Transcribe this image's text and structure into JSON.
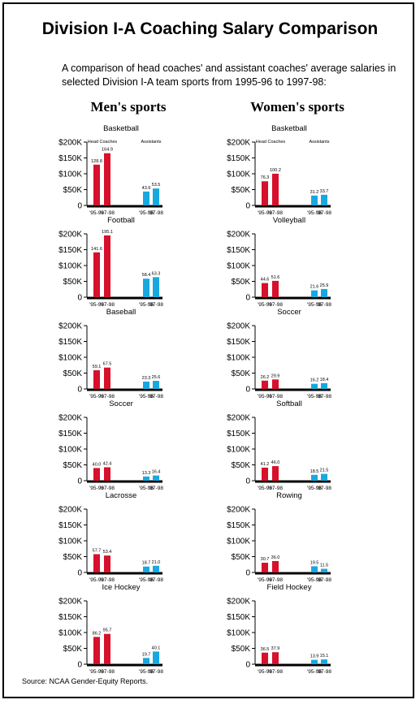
{
  "title": "Division I-A Coaching Salary Comparison",
  "subtitle": "A comparison of head coaches' and assistant coaches' average salaries in selected Division I-A team sports from 1995-96 to 1997-98:",
  "columns": {
    "men": "Men's sports",
    "women": "Women's sports"
  },
  "source": "Source: NCAA Gender-Equity Reports.",
  "colors": {
    "head": "#d7102c",
    "assistant": "#18a8e0",
    "axis": "#000000"
  },
  "chart_data": [
    {
      "type": "bar",
      "group": "Men's sports",
      "title": "Basketball",
      "ylim": [
        0,
        200
      ],
      "yticks": [
        "0",
        "$50K",
        "$100K",
        "$150K",
        "$200K"
      ],
      "series_labels": [
        "Head Coaches",
        "Assistants"
      ],
      "categories": [
        "'95-96",
        "'97-98"
      ],
      "series": [
        {
          "values": [
            128.8,
            164.9
          ],
          "labels": [
            "128.8",
            "164.9"
          ]
        },
        {
          "values": [
            43.9,
            53.5
          ],
          "labels": [
            "43.9",
            "53.5"
          ]
        }
      ]
    },
    {
      "type": "bar",
      "group": "Women's sports",
      "title": "Basketball",
      "ylim": [
        0,
        200
      ],
      "yticks": [
        "0",
        "$50K",
        "$100K",
        "$150K",
        "$200K"
      ],
      "series_labels": [
        "Head Coaches",
        "Assistants"
      ],
      "categories": [
        "'95-96",
        "'97-98"
      ],
      "series": [
        {
          "values": [
            76.3,
            100.2
          ],
          "labels": [
            "76.3",
            "100.2"
          ]
        },
        {
          "values": [
            31.2,
            33.7
          ],
          "labels": [
            "31.2",
            "33.7"
          ]
        }
      ]
    },
    {
      "type": "bar",
      "group": "Men's sports",
      "title": "Football",
      "ylim": [
        0,
        200
      ],
      "yticks": [
        "0",
        "$50K",
        "$100K",
        "$150K",
        "$200K"
      ],
      "categories": [
        "'95-96",
        "'97-98"
      ],
      "series": [
        {
          "values": [
            141.6,
            195.1
          ],
          "labels": [
            "141.6",
            "195.1"
          ]
        },
        {
          "values": [
            58.4,
            63.3
          ],
          "labels": [
            "58.4",
            "63.3"
          ]
        }
      ]
    },
    {
      "type": "bar",
      "group": "Women's sports",
      "title": "Volleyball",
      "ylim": [
        0,
        200
      ],
      "yticks": [
        "0",
        "$50K",
        "$100K",
        "$150K",
        "$200K"
      ],
      "categories": [
        "'95-96",
        "'97-98"
      ],
      "series": [
        {
          "values": [
            44.6,
            51.6
          ],
          "labels": [
            "44.6",
            "51.6"
          ]
        },
        {
          "values": [
            21.6,
            25.9
          ],
          "labels": [
            "21.6",
            "25.9"
          ]
        }
      ]
    },
    {
      "type": "bar",
      "group": "Men's sports",
      "title": "Baseball",
      "ylim": [
        0,
        200
      ],
      "yticks": [
        "0",
        "$50K",
        "$100K",
        "$150K",
        "$200K"
      ],
      "categories": [
        "'95-96",
        "'97-98"
      ],
      "series": [
        {
          "values": [
            59.1,
            67.5
          ],
          "labels": [
            "59.1",
            "67.5"
          ]
        },
        {
          "values": [
            23.3,
            25.6
          ],
          "labels": [
            "23.3",
            "25.6"
          ]
        }
      ]
    },
    {
      "type": "bar",
      "group": "Women's sports",
      "title": "Soccer",
      "ylim": [
        0,
        200
      ],
      "yticks": [
        "0",
        "$50K",
        "$100K",
        "$150K",
        "$200K"
      ],
      "categories": [
        "'95-96",
        "'97-98"
      ],
      "series": [
        {
          "values": [
            26.2,
            29.9
          ],
          "labels": [
            "26.2",
            "29.9"
          ]
        },
        {
          "values": [
            16.2,
            18.4
          ],
          "labels": [
            "16.2",
            "18.4"
          ]
        }
      ]
    },
    {
      "type": "bar",
      "group": "Men's sports",
      "title": "Soccer",
      "ylim": [
        0,
        200
      ],
      "yticks": [
        "0",
        "$50K",
        "$100K",
        "$150K",
        "$200K"
      ],
      "categories": [
        "'95-96",
        "'97-98"
      ],
      "series": [
        {
          "values": [
            40.0,
            42.4
          ],
          "labels": [
            "40.0",
            "42.4"
          ]
        },
        {
          "values": [
            13.3,
            16.4
          ],
          "labels": [
            "13.3",
            "16.4"
          ]
        }
      ]
    },
    {
      "type": "bar",
      "group": "Women's sports",
      "title": "Softball",
      "ylim": [
        0,
        200
      ],
      "yticks": [
        "0",
        "$50K",
        "$100K",
        "$150K",
        "$200K"
      ],
      "categories": [
        "'95-96",
        "'97-98"
      ],
      "series": [
        {
          "values": [
            41.2,
            46.0
          ],
          "labels": [
            "41.2",
            "46.0"
          ]
        },
        {
          "values": [
            18.5,
            21.5
          ],
          "labels": [
            "18.5",
            "21.5"
          ]
        }
      ]
    },
    {
      "type": "bar",
      "group": "Men's sports",
      "title": "Lacrosse",
      "ylim": [
        0,
        200
      ],
      "yticks": [
        "0",
        "$50K",
        "$100K",
        "$150K",
        "$200K"
      ],
      "categories": [
        "'95-96",
        "'97-98"
      ],
      "series": [
        {
          "values": [
            57.7,
            53.4
          ],
          "labels": [
            "57.7",
            "53.4"
          ]
        },
        {
          "values": [
            18.7,
            21.0
          ],
          "labels": [
            "18.7",
            "21.0"
          ]
        }
      ]
    },
    {
      "type": "bar",
      "group": "Women's sports",
      "title": "Rowing",
      "ylim": [
        0,
        200
      ],
      "yticks": [
        "0",
        "$50K",
        "$100K",
        "$150K",
        "$200K"
      ],
      "categories": [
        "'95-96",
        "'97-98"
      ],
      "series": [
        {
          "values": [
            30.7,
            36.0
          ],
          "labels": [
            "30.7",
            "36.0"
          ]
        },
        {
          "values": [
            19.5,
            11.5
          ],
          "labels": [
            "19.5",
            "11.5"
          ]
        }
      ]
    },
    {
      "type": "bar",
      "group": "Men's sports",
      "title": "Ice Hockey",
      "ylim": [
        0,
        200
      ],
      "yticks": [
        "0",
        "$50K",
        "$100K",
        "$150K",
        "$200K"
      ],
      "categories": [
        "'95-96",
        "'97-98"
      ],
      "series": [
        {
          "values": [
            86.2,
            95.7
          ],
          "labels": [
            "86.2",
            "95.7"
          ]
        },
        {
          "values": [
            19.7,
            40.1
          ],
          "labels": [
            "19.7",
            "40.1"
          ]
        }
      ]
    },
    {
      "type": "bar",
      "group": "Women's sports",
      "title": "Field Hockey",
      "ylim": [
        0,
        200
      ],
      "yticks": [
        "0",
        "$50K",
        "$100K",
        "$150K",
        "$200K"
      ],
      "categories": [
        "'95-96",
        "'97-98"
      ],
      "series": [
        {
          "values": [
            36.5,
            37.9
          ],
          "labels": [
            "36.5",
            "37.9"
          ]
        },
        {
          "values": [
            13.9,
            15.1
          ],
          "labels": [
            "13.9",
            "15.1"
          ]
        }
      ]
    }
  ]
}
